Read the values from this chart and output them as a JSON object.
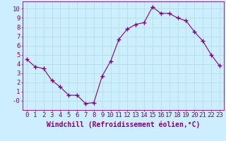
{
  "x": [
    0,
    1,
    2,
    3,
    4,
    5,
    6,
    7,
    8,
    9,
    10,
    11,
    12,
    13,
    14,
    15,
    16,
    17,
    18,
    19,
    20,
    21,
    22,
    23
  ],
  "y": [
    4.5,
    3.7,
    3.5,
    2.2,
    1.5,
    0.6,
    0.6,
    -0.3,
    -0.2,
    2.7,
    4.3,
    6.7,
    7.8,
    8.3,
    8.5,
    10.2,
    9.5,
    9.5,
    9.0,
    8.7,
    7.5,
    6.5,
    5.0,
    3.8
  ],
  "line_color": "#800080",
  "marker": "+",
  "marker_size": 4,
  "marker_linewidth": 1.0,
  "background_color": "#cceeff",
  "grid_color": "#aadddd",
  "xlabel": "Windchill (Refroidissement éolien,°C)",
  "ylabel": "",
  "xlim": [
    -0.5,
    23.5
  ],
  "ylim": [
    -1.0,
    10.8
  ],
  "yticks": [
    0,
    1,
    2,
    3,
    4,
    5,
    6,
    7,
    8,
    9,
    10
  ],
  "xticks": [
    0,
    1,
    2,
    3,
    4,
    5,
    6,
    7,
    8,
    9,
    10,
    11,
    12,
    13,
    14,
    15,
    16,
    17,
    18,
    19,
    20,
    21,
    22,
    23
  ],
  "tick_color": "#800080",
  "label_color": "#800080",
  "font_size": 6.5,
  "xlabel_fontsize": 7,
  "linewidth": 0.8
}
